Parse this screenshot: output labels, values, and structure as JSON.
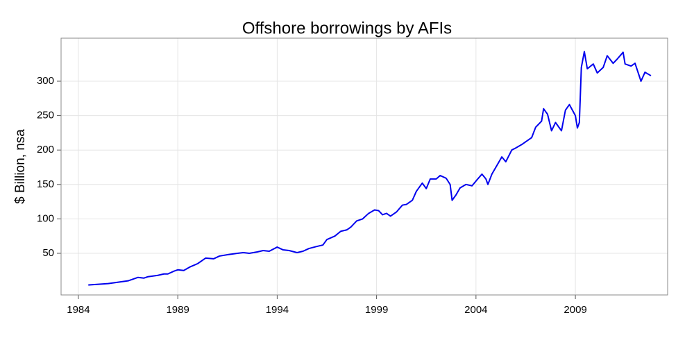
{
  "chart_data": {
    "type": "line",
    "title": "Offshore borrowings by AFIs",
    "y_label": "$ Billion, nsa",
    "x": [
      1984.5,
      1985.0,
      1985.5,
      1986.0,
      1986.5,
      1987.0,
      1987.3,
      1987.5,
      1988.0,
      1988.3,
      1988.5,
      1988.8,
      1989.0,
      1989.3,
      1989.6,
      1990.0,
      1990.4,
      1990.8,
      1991.1,
      1991.5,
      1992.0,
      1992.3,
      1992.6,
      1993.0,
      1993.3,
      1993.6,
      1994.0,
      1994.3,
      1994.6,
      1995.0,
      1995.3,
      1995.6,
      1996.0,
      1996.3,
      1996.5,
      1996.9,
      1997.2,
      1997.5,
      1997.7,
      1998.0,
      1998.3,
      1998.6,
      1998.9,
      1999.1,
      1999.3,
      1999.5,
      1999.7,
      2000.0,
      2000.3,
      2000.5,
      2000.8,
      2001.0,
      2001.3,
      2001.5,
      2001.7,
      2002.0,
      2002.2,
      2002.5,
      2002.7,
      2002.8,
      2003.0,
      2003.2,
      2003.5,
      2003.8,
      2004.0,
      2004.3,
      2004.5,
      2004.6,
      2004.8,
      2005.0,
      2005.3,
      2005.5,
      2005.8,
      2006.0,
      2006.3,
      2006.5,
      2006.8,
      2007.0,
      2007.3,
      2007.4,
      2007.6,
      2007.8,
      2008.0,
      2008.3,
      2008.5,
      2008.7,
      2009.0,
      2009.1,
      2009.2,
      2009.3,
      2009.45,
      2009.6,
      2009.9,
      2010.1,
      2010.4,
      2010.6,
      2010.9,
      2011.1,
      2011.4,
      2011.5,
      2011.8,
      2012.0,
      2012.3,
      2012.5,
      2012.8
    ],
    "series": [
      {
        "name": "Offshore borrowings",
        "color": "#0000ee",
        "values": [
          4,
          5,
          6,
          8,
          10,
          15,
          14,
          16,
          18,
          20,
          20,
          24,
          26,
          25,
          30,
          35,
          43,
          42,
          46,
          48,
          50,
          51,
          50,
          52,
          54,
          53,
          59,
          55,
          54,
          51,
          53,
          57,
          60,
          62,
          70,
          75,
          82,
          84,
          88,
          97,
          100,
          108,
          113,
          112,
          106,
          108,
          104,
          110,
          120,
          121,
          127,
          140,
          152,
          144,
          158,
          158,
          163,
          159,
          150,
          127,
          135,
          145,
          150,
          148,
          155,
          165,
          158,
          150,
          165,
          175,
          190,
          183,
          200,
          203,
          208,
          212,
          218,
          233,
          242,
          260,
          252,
          228,
          240,
          228,
          258,
          266,
          250,
          232,
          240,
          320,
          343,
          318,
          325,
          312,
          320,
          337,
          326,
          332,
          342,
          325,
          322,
          326,
          300,
          313,
          308
        ]
      }
    ],
    "xlim": [
      1983.13,
      2013.64
    ],
    "ylim": [
      -10.5,
      362.5
    ],
    "xticks": [
      1984,
      1989,
      1994,
      1999,
      2004,
      2009
    ],
    "yticks": [
      50,
      100,
      150,
      200,
      250,
      300
    ],
    "grid": true
  }
}
